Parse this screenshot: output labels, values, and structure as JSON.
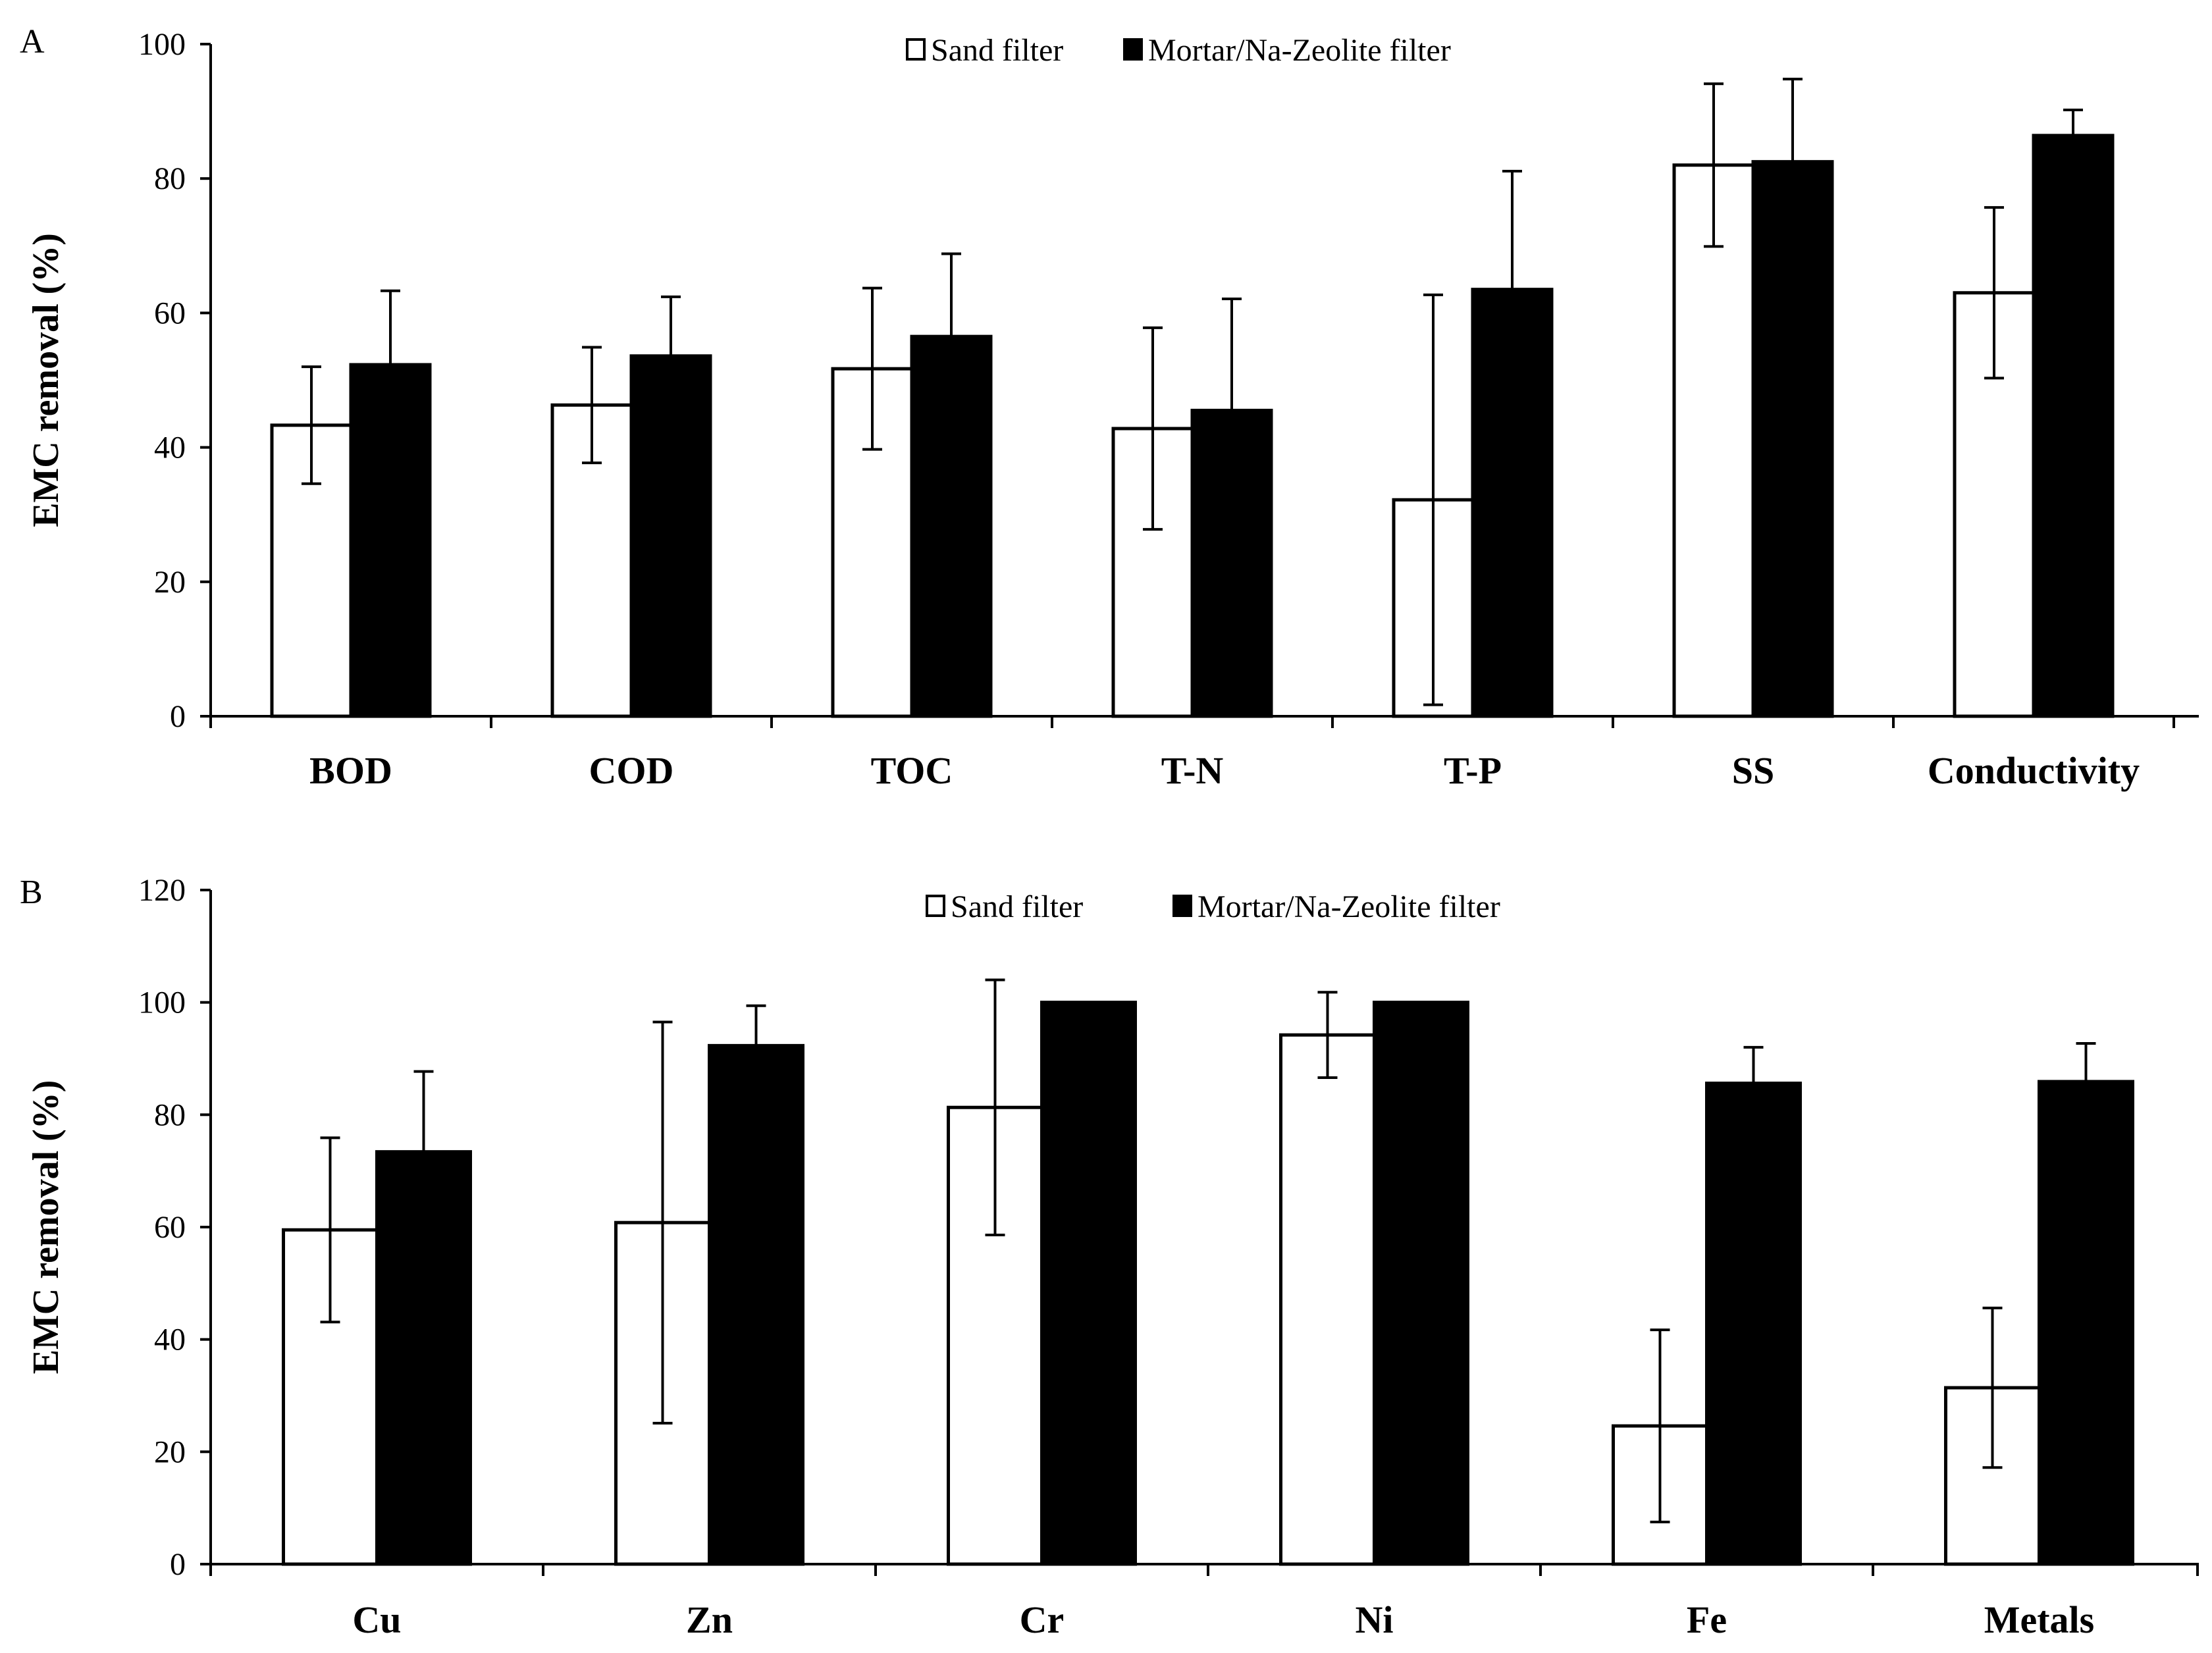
{
  "figure": {
    "panels": [
      "A",
      "B"
    ]
  },
  "colors": {
    "sand": "#ffffff",
    "zeolite": "#000000",
    "axis": "#000000"
  },
  "chart_data": [
    {
      "panel": "A",
      "type": "bar",
      "title": "",
      "xlabel": "",
      "ylabel": "EMC removal (%)",
      "ylim": [
        0,
        100
      ],
      "yticks": [
        0,
        20,
        40,
        60,
        80,
        100
      ],
      "legend_position": "top-center",
      "categories": [
        "BOD",
        "COD",
        "TOC",
        "T-N",
        "T-P",
        "SS",
        "Conductivity"
      ],
      "series": [
        {
          "name": "Sand filter",
          "values": [
            43.3,
            46.3,
            51.7,
            42.8,
            32.2,
            82.0,
            63.0
          ],
          "error": [
            8.7,
            8.6,
            12.0,
            15.0,
            30.5,
            12.1,
            12.7
          ]
        },
        {
          "name": "Mortar/Na-Zeolite filter",
          "values": [
            52.3,
            53.6,
            56.5,
            45.5,
            63.5,
            82.5,
            86.4
          ],
          "error": [
            11.0,
            8.8,
            12.3,
            16.6,
            17.6,
            12.3,
            3.8
          ]
        }
      ]
    },
    {
      "panel": "B",
      "type": "bar",
      "title": "",
      "xlabel": "",
      "ylabel": "EMC removal (%)",
      "ylim": [
        0,
        120
      ],
      "yticks": [
        0,
        20,
        40,
        60,
        80,
        100,
        120
      ],
      "legend_position": "top-center",
      "categories": [
        "Cu",
        "Zn",
        "Cr",
        "Ni",
        "Fe",
        "Metals"
      ],
      "series": [
        {
          "name": "Sand filter",
          "values": [
            59.5,
            60.8,
            81.3,
            94.2,
            24.6,
            31.4
          ],
          "error": [
            16.4,
            35.7,
            22.7,
            7.6,
            17.1,
            14.2
          ]
        },
        {
          "name": "Mortar/Na-Zeolite filter",
          "values": [
            73.4,
            92.3,
            100.0,
            100.0,
            85.6,
            85.9
          ],
          "error": [
            14.3,
            7.1,
            0,
            0,
            6.4,
            6.8
          ]
        }
      ]
    }
  ]
}
